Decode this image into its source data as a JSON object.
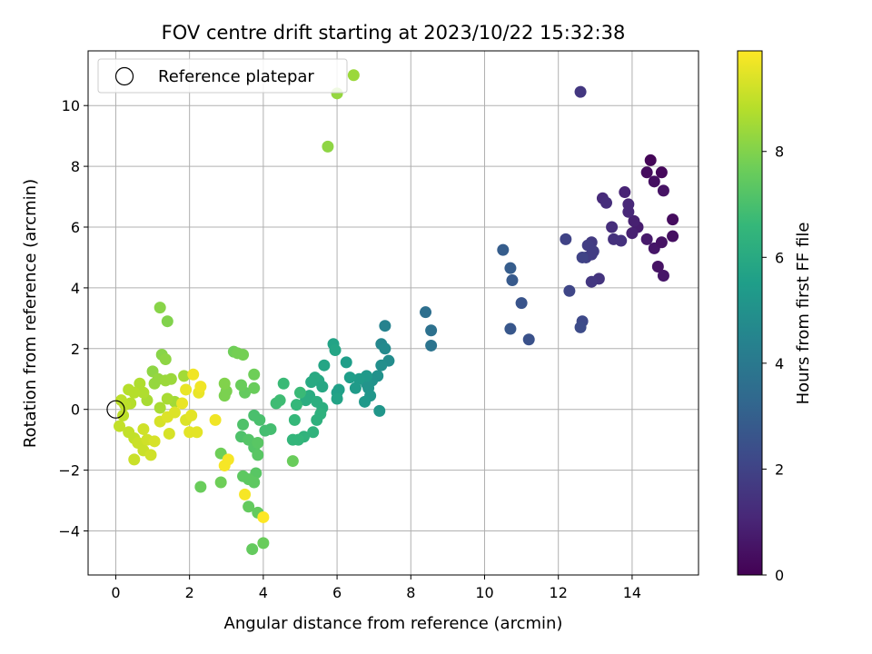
{
  "chart_data": {
    "type": "scatter",
    "title": "FOV centre drift starting at 2023/10/22 15:32:38",
    "xlabel": "Angular distance from reference (arcmin)",
    "ylabel": "Rotation from reference (arcmin)",
    "xlim": [
      -0.75,
      15.8
    ],
    "ylim": [
      -5.45,
      11.8
    ],
    "xticks": [
      0,
      2,
      4,
      6,
      8,
      10,
      12,
      14
    ],
    "yticks": [
      -4,
      -2,
      0,
      2,
      4,
      6,
      8,
      10
    ],
    "grid": true,
    "legend": {
      "position": "top-left",
      "entries": [
        "Reference platepar"
      ]
    },
    "reference_point": {
      "x": 0,
      "y": 0
    },
    "colorbar": {
      "label": "Hours from first FF file",
      "colormap": "viridis",
      "range": [
        0,
        9.9
      ],
      "ticks": [
        0,
        2,
        4,
        6,
        8
      ]
    },
    "points": [
      [
        14.5,
        8.2,
        0.1
      ],
      [
        14.8,
        7.8,
        0.2
      ],
      [
        14.4,
        7.8,
        0.3
      ],
      [
        14.6,
        7.5,
        0.4
      ],
      [
        14.85,
        7.2,
        0.5
      ],
      [
        15.1,
        6.25,
        0.3
      ],
      [
        15.1,
        5.7,
        0.4
      ],
      [
        14.6,
        5.3,
        0.6
      ],
      [
        14.8,
        5.5,
        0.5
      ],
      [
        14.4,
        5.6,
        0.7
      ],
      [
        14.7,
        4.7,
        0.5
      ],
      [
        14.85,
        4.4,
        0.6
      ],
      [
        14.15,
        6.0,
        0.8
      ],
      [
        14.05,
        6.2,
        0.9
      ],
      [
        14.0,
        5.8,
        0.9
      ],
      [
        13.8,
        7.15,
        1.0
      ],
      [
        13.9,
        6.75,
        1.1
      ],
      [
        13.9,
        6.5,
        1.1
      ],
      [
        13.2,
        6.95,
        1.2
      ],
      [
        13.3,
        6.8,
        1.3
      ],
      [
        13.45,
        6.0,
        1.3
      ],
      [
        13.5,
        5.6,
        1.4
      ],
      [
        13.7,
        5.55,
        1.4
      ],
      [
        13.1,
        4.3,
        1.5
      ],
      [
        12.9,
        4.2,
        1.6
      ],
      [
        12.9,
        5.5,
        1.7
      ],
      [
        12.8,
        5.4,
        1.8
      ],
      [
        12.75,
        5.0,
        1.9
      ],
      [
        12.9,
        5.1,
        1.8
      ],
      [
        12.95,
        5.2,
        1.8
      ],
      [
        12.65,
        5.0,
        2.0
      ],
      [
        12.6,
        10.45,
        1.6
      ],
      [
        12.2,
        5.6,
        2.0
      ],
      [
        12.3,
        3.9,
        2.1
      ],
      [
        12.65,
        2.9,
        2.2
      ],
      [
        12.6,
        2.7,
        2.3
      ],
      [
        11.2,
        2.3,
        2.5
      ],
      [
        11.0,
        3.5,
        2.6
      ],
      [
        10.7,
        2.65,
        2.7
      ],
      [
        10.75,
        4.25,
        2.8
      ],
      [
        10.7,
        4.65,
        2.9
      ],
      [
        10.5,
        5.25,
        2.9
      ],
      [
        8.4,
        3.2,
        3.6
      ],
      [
        8.55,
        2.6,
        3.7
      ],
      [
        8.55,
        2.1,
        3.8
      ],
      [
        7.3,
        2.75,
        4.4
      ],
      [
        7.2,
        2.15,
        4.6
      ],
      [
        7.3,
        2.0,
        4.7
      ],
      [
        7.4,
        1.6,
        4.8
      ],
      [
        7.2,
        1.45,
        4.9
      ],
      [
        7.1,
        1.1,
        5.0
      ],
      [
        6.95,
        0.95,
        5.0
      ],
      [
        6.85,
        0.7,
        5.1
      ],
      [
        6.8,
        0.85,
        5.1
      ],
      [
        7.15,
        -0.05,
        5.2
      ],
      [
        6.9,
        0.45,
        5.2
      ],
      [
        6.75,
        0.25,
        5.3
      ],
      [
        6.8,
        1.1,
        5.3
      ],
      [
        6.6,
        1.0,
        5.4
      ],
      [
        6.5,
        0.7,
        5.4
      ],
      [
        6.35,
        1.05,
        5.5
      ],
      [
        6.25,
        1.55,
        5.5
      ],
      [
        6.05,
        0.65,
        5.6
      ],
      [
        6.0,
        0.55,
        5.6
      ],
      [
        6.0,
        0.35,
        5.7
      ],
      [
        5.9,
        2.15,
        5.7
      ],
      [
        5.95,
        1.95,
        5.8
      ],
      [
        5.65,
        1.45,
        5.8
      ],
      [
        5.6,
        0.75,
        5.9
      ],
      [
        5.5,
        0.95,
        5.9
      ],
      [
        5.4,
        1.05,
        6.0
      ],
      [
        5.3,
        0.9,
        6.0
      ],
      [
        5.25,
        0.45,
        6.1
      ],
      [
        5.15,
        0.3,
        6.1
      ],
      [
        5.45,
        0.25,
        6.2
      ],
      [
        5.6,
        0.05,
        6.2
      ],
      [
        5.55,
        -0.15,
        6.3
      ],
      [
        5.45,
        -0.35,
        6.3
      ],
      [
        5.35,
        -0.75,
        6.4
      ],
      [
        5.1,
        -0.9,
        6.4
      ],
      [
        4.95,
        -1.0,
        6.5
      ],
      [
        4.8,
        -1.0,
        6.5
      ],
      [
        4.85,
        -0.35,
        6.6
      ],
      [
        4.9,
        0.15,
        6.6
      ],
      [
        5.0,
        0.55,
        6.7
      ],
      [
        4.55,
        0.85,
        6.7
      ],
      [
        4.45,
        0.3,
        6.8
      ],
      [
        4.35,
        0.2,
        6.8
      ],
      [
        4.2,
        -0.65,
        6.9
      ],
      [
        4.05,
        -0.7,
        6.9
      ],
      [
        3.9,
        -0.35,
        7.0
      ],
      [
        3.75,
        -0.2,
        7.0
      ],
      [
        3.45,
        -0.5,
        7.1
      ],
      [
        3.4,
        -0.9,
        7.1
      ],
      [
        3.6,
        -1.0,
        7.2
      ],
      [
        3.75,
        -1.25,
        7.2
      ],
      [
        3.85,
        -1.1,
        7.3
      ],
      [
        3.85,
        -1.5,
        7.3
      ],
      [
        3.8,
        -2.1,
        7.3
      ],
      [
        3.6,
        -2.3,
        7.4
      ],
      [
        3.45,
        -2.2,
        7.4
      ],
      [
        3.75,
        -2.4,
        7.4
      ],
      [
        3.6,
        -3.2,
        7.5
      ],
      [
        3.85,
        -3.4,
        7.5
      ],
      [
        3.7,
        -4.6,
        7.5
      ],
      [
        4.0,
        -4.4,
        7.6
      ],
      [
        4.8,
        -1.7,
        7.6
      ],
      [
        2.3,
        -2.55,
        7.6
      ],
      [
        2.85,
        -2.4,
        7.7
      ],
      [
        2.85,
        -1.45,
        7.7
      ],
      [
        3.5,
        0.55,
        7.5
      ],
      [
        3.4,
        0.8,
        7.6
      ],
      [
        3.75,
        0.7,
        7.6
      ],
      [
        3.75,
        1.15,
        7.7
      ],
      [
        3.2,
        1.9,
        7.7
      ],
      [
        3.3,
        1.85,
        7.8
      ],
      [
        3.45,
        1.8,
        7.8
      ],
      [
        2.95,
        0.45,
        7.9
      ],
      [
        3.0,
        0.6,
        7.9
      ],
      [
        2.95,
        0.85,
        8.0
      ],
      [
        1.2,
        3.35,
        8.1
      ],
      [
        1.4,
        2.9,
        8.0
      ],
      [
        1.25,
        1.8,
        8.1
      ],
      [
        1.35,
        1.65,
        8.2
      ],
      [
        1.0,
        1.25,
        8.2
      ],
      [
        1.15,
        1.0,
        8.3
      ],
      [
        1.05,
        0.85,
        8.3
      ],
      [
        1.35,
        0.95,
        8.4
      ],
      [
        1.5,
        1.0,
        8.4
      ],
      [
        1.85,
        1.1,
        8.5
      ],
      [
        1.6,
        0.25,
        8.5
      ],
      [
        1.4,
        0.35,
        8.6
      ],
      [
        1.2,
        0.05,
        8.6
      ],
      [
        0.85,
        0.3,
        8.6
      ],
      [
        0.75,
        0.55,
        8.7
      ],
      [
        0.65,
        0.85,
        8.7
      ],
      [
        0.5,
        0.55,
        8.8
      ],
      [
        0.35,
        0.65,
        8.8
      ],
      [
        0.4,
        0.2,
        8.8
      ],
      [
        0.25,
        0.15,
        8.9
      ],
      [
        0.15,
        0.3,
        8.9
      ],
      [
        0.2,
        -0.2,
        8.9
      ],
      [
        0.1,
        -0.55,
        9.0
      ],
      [
        0.35,
        -0.75,
        9.0
      ],
      [
        0.5,
        -0.95,
        9.0
      ],
      [
        0.6,
        -1.1,
        9.1
      ],
      [
        0.75,
        -1.35,
        9.1
      ],
      [
        0.5,
        -1.65,
        9.1
      ],
      [
        0.95,
        -1.5,
        9.2
      ],
      [
        0.85,
        -1.0,
        9.2
      ],
      [
        0.75,
        -0.65,
        9.2
      ],
      [
        1.05,
        -1.05,
        9.3
      ],
      [
        1.2,
        -0.4,
        9.3
      ],
      [
        1.45,
        -0.8,
        9.3
      ],
      [
        1.4,
        -0.25,
        9.4
      ],
      [
        1.6,
        -0.1,
        9.4
      ],
      [
        1.9,
        -0.35,
        9.4
      ],
      [
        2.05,
        -0.2,
        9.5
      ],
      [
        2.0,
        -0.75,
        9.5
      ],
      [
        2.2,
        -0.75,
        9.5
      ],
      [
        1.8,
        0.2,
        9.6
      ],
      [
        1.9,
        0.65,
        9.6
      ],
      [
        2.25,
        0.55,
        9.6
      ],
      [
        2.3,
        0.75,
        9.7
      ],
      [
        2.1,
        1.15,
        9.7
      ],
      [
        2.7,
        -0.35,
        9.7
      ],
      [
        2.95,
        -1.85,
        9.8
      ],
      [
        3.05,
        -1.65,
        9.8
      ],
      [
        3.5,
        -2.8,
        9.8
      ],
      [
        4.0,
        -3.55,
        9.9
      ],
      [
        5.75,
        8.65,
        8.2
      ],
      [
        6.0,
        10.4,
        8.3
      ],
      [
        6.45,
        11.0,
        8.4
      ]
    ]
  }
}
